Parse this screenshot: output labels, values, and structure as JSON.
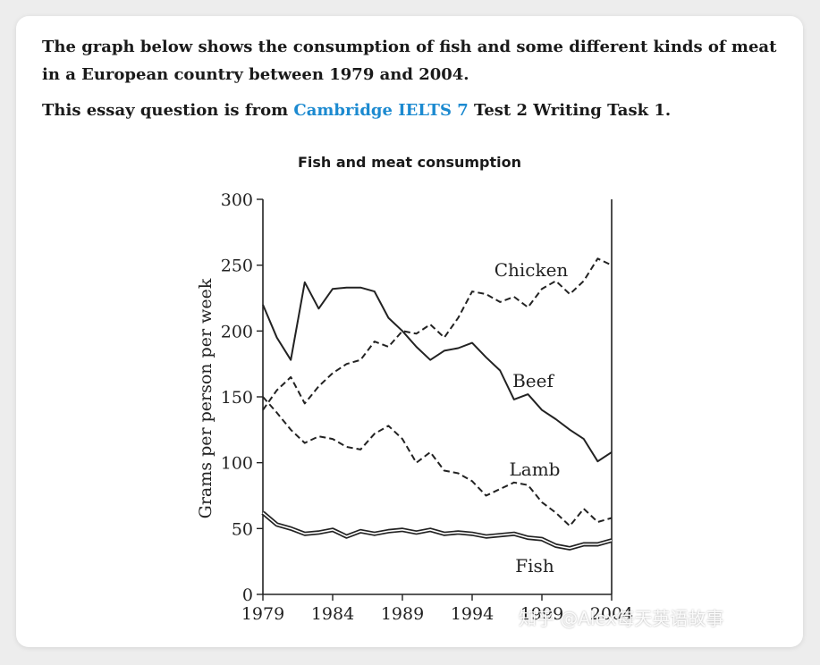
{
  "intro": {
    "paragraph1": "The graph below shows the consumption of fish and some different kinds of meat in a European country between 1979 and 2004.",
    "paragraph2_before": "This essay question is from ",
    "paragraph2_link": "Cambridge IELTS 7",
    "paragraph2_after": " Test 2 Writing Task 1.",
    "link_color": "#1c8ad0"
  },
  "chart_data": {
    "type": "line",
    "title": "Fish and meat consumption",
    "xlabel": "",
    "ylabel": "Grams per person per week",
    "xlim": [
      1979,
      2004
    ],
    "ylim": [
      0,
      300
    ],
    "x_ticks": [
      1979,
      1984,
      1989,
      1994,
      1999,
      2004
    ],
    "y_ticks": [
      0,
      50,
      100,
      150,
      200,
      250,
      300
    ],
    "grid": false,
    "legend": "direct labels on lines",
    "series": [
      {
        "name": "Chicken",
        "style": "dashed",
        "x": [
          1979,
          1980,
          1981,
          1982,
          1983,
          1984,
          1985,
          1986,
          1987,
          1988,
          1989,
          1990,
          1991,
          1992,
          1993,
          1994,
          1995,
          1996,
          1997,
          1998,
          1999,
          2000,
          2001,
          2002,
          2003,
          2004
        ],
        "values": [
          140,
          155,
          165,
          145,
          158,
          168,
          175,
          178,
          192,
          188,
          200,
          198,
          205,
          195,
          210,
          230,
          228,
          222,
          226,
          218,
          232,
          238,
          228,
          238,
          255,
          250
        ]
      },
      {
        "name": "Beef",
        "style": "solid",
        "x": [
          1979,
          1980,
          1981,
          1982,
          1983,
          1984,
          1985,
          1986,
          1987,
          1988,
          1989,
          1990,
          1991,
          1992,
          1993,
          1994,
          1995,
          1996,
          1997,
          1998,
          1999,
          2000,
          2001,
          2002,
          2003,
          2004
        ],
        "values": [
          220,
          195,
          178,
          237,
          217,
          232,
          233,
          233,
          230,
          210,
          200,
          188,
          178,
          185,
          187,
          191,
          180,
          170,
          148,
          152,
          140,
          133,
          125,
          118,
          101,
          108
        ]
      },
      {
        "name": "Lamb",
        "style": "dashed",
        "x": [
          1979,
          1980,
          1981,
          1982,
          1983,
          1984,
          1985,
          1986,
          1987,
          1988,
          1989,
          1990,
          1991,
          1992,
          1993,
          1994,
          1995,
          1996,
          1997,
          1998,
          1999,
          2000,
          2001,
          2002,
          2003,
          2004
        ],
        "values": [
          150,
          138,
          125,
          115,
          120,
          118,
          112,
          110,
          122,
          128,
          118,
          100,
          108,
          94,
          92,
          86,
          75,
          80,
          85,
          83,
          70,
          62,
          52,
          65,
          55,
          58
        ]
      },
      {
        "name": "Fish",
        "style": "solid",
        "x": [
          1979,
          1980,
          1981,
          1982,
          1983,
          1984,
          1985,
          1986,
          1987,
          1988,
          1989,
          1990,
          1991,
          1992,
          1993,
          1994,
          1995,
          1996,
          1997,
          1998,
          1999,
          2000,
          2001,
          2002,
          2003,
          2004
        ],
        "values": [
          62,
          53,
          50,
          46,
          47,
          49,
          44,
          48,
          46,
          48,
          49,
          47,
          49,
          46,
          47,
          46,
          44,
          45,
          46,
          43,
          42,
          37,
          35,
          38,
          38,
          41
        ]
      }
    ]
  },
  "watermark": "知乎 @Alex每天英语故事"
}
